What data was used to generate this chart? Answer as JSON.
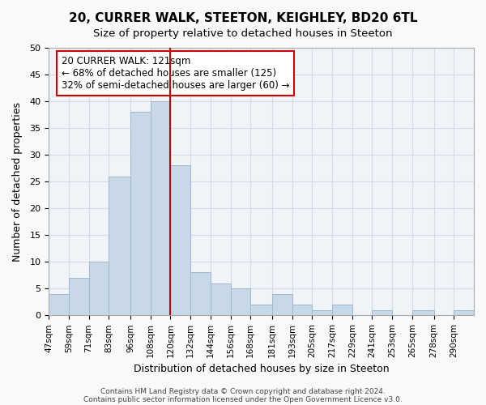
{
  "title": "20, CURRER WALK, STEETON, KEIGHLEY, BD20 6TL",
  "subtitle": "Size of property relative to detached houses in Steeton",
  "xlabel": "Distribution of detached houses by size in Steeton",
  "ylabel": "Number of detached properties",
  "bar_color": "#c8d8e8",
  "bar_edge_color": "#a0b8cc",
  "grid_color": "#d0dce8",
  "background_color": "#f0f4f8",
  "vline_x": 120,
  "vline_color": "#cc0000",
  "annotation_line1": "20 CURRER WALK: 121sqm",
  "annotation_line2": "← 68% of detached houses are smaller (125)",
  "annotation_line3": "32% of semi-detached houses are larger (60) →",
  "annotation_box_color": "#cc0000",
  "footer1": "Contains HM Land Registry data © Crown copyright and database right 2024.",
  "footer2": "Contains public sector information licensed under the Open Government Licence v3.0.",
  "bin_left_edges": [
    47,
    59,
    71,
    83,
    96,
    108,
    120,
    132,
    144,
    156,
    168,
    181,
    193,
    205,
    217,
    229,
    241,
    253,
    265,
    278,
    290
  ],
  "bin_widths": [
    12,
    12,
    12,
    13,
    12,
    12,
    12,
    12,
    12,
    12,
    13,
    12,
    12,
    12,
    12,
    12,
    12,
    12,
    13,
    12,
    12
  ],
  "bin_labels": [
    "47sqm",
    "59sqm",
    "71sqm",
    "83sqm",
    "96sqm",
    "108sqm",
    "120sqm",
    "132sqm",
    "144sqm",
    "156sqm",
    "168sqm",
    "181sqm",
    "193sqm",
    "205sqm",
    "217sqm",
    "229sqm",
    "241sqm",
    "253sqm",
    "265sqm",
    "278sqm",
    "290sqm"
  ],
  "counts": [
    4,
    7,
    10,
    26,
    38,
    40,
    28,
    8,
    6,
    5,
    2,
    4,
    2,
    1,
    2,
    0,
    1,
    0,
    1,
    0,
    1
  ],
  "xlim": [
    47,
    302
  ],
  "ylim": [
    0,
    50
  ],
  "yticks": [
    0,
    5,
    10,
    15,
    20,
    25,
    30,
    35,
    40,
    45,
    50
  ]
}
